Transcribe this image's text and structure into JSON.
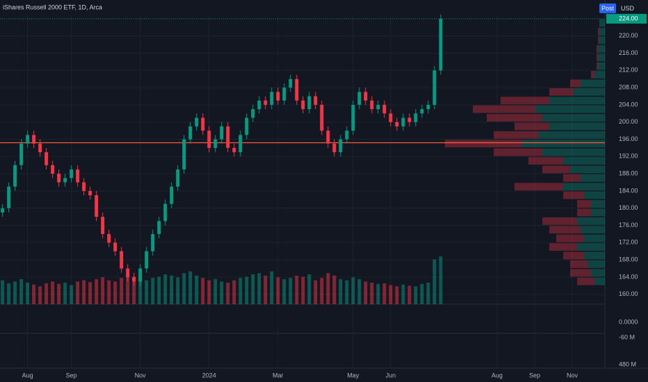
{
  "chart_data": {
    "type": "candlestick",
    "title": "iShares Russell 2000 ETF, 1D, Arca",
    "badge": "Post",
    "currency": "USD",
    "up_color": "#089981",
    "down_color": "#f23645",
    "xlim": [
      -0.4,
      96
    ],
    "xticks": [
      {
        "value": 4,
        "label": "Aug"
      },
      {
        "value": 11,
        "label": "Sep"
      },
      {
        "value": 22,
        "label": "Nov"
      },
      {
        "value": 33,
        "label": "2024"
      },
      {
        "value": 44,
        "label": "Mar"
      },
      {
        "value": 56,
        "label": "May"
      },
      {
        "value": 62,
        "label": "Jun"
      },
      {
        "value": 79,
        "label": "Aug"
      },
      {
        "value": 85,
        "label": "Sep"
      },
      {
        "value": 91,
        "label": "Nov"
      }
    ],
    "ylim": [
      157.7,
      224.8
    ],
    "yticks": [
      {
        "value": 160,
        "label": "160.00"
      },
      {
        "value": 164,
        "label": "164.00"
      },
      {
        "value": 168,
        "label": "168.00"
      },
      {
        "value": 172,
        "label": "172.00"
      },
      {
        "value": 176,
        "label": "176.00"
      },
      {
        "value": 180,
        "label": "180.00"
      },
      {
        "value": 184,
        "label": "184.00"
      },
      {
        "value": 188,
        "label": "188.00"
      },
      {
        "value": 192,
        "label": "192.00"
      },
      {
        "value": 196,
        "label": "196.00"
      },
      {
        "value": 200,
        "label": "200.00"
      },
      {
        "value": 204,
        "label": "204.00"
      },
      {
        "value": 208,
        "label": "208.00"
      },
      {
        "value": 212,
        "label": "212.00"
      },
      {
        "value": 216,
        "label": "216.00"
      },
      {
        "value": 220,
        "label": "220.00"
      }
    ],
    "last_price": {
      "value": 224,
      "label": "224.00"
    },
    "hline": {
      "value": 195.2,
      "color": "#ff5a3c"
    },
    "open": [
      179,
      180,
      185,
      190,
      195,
      197,
      195,
      193,
      190,
      188,
      186,
      187,
      189,
      186,
      184,
      183,
      178,
      174,
      172,
      170,
      166,
      164,
      163,
      166,
      170,
      174,
      177,
      181,
      185,
      189,
      196,
      199,
      201,
      198,
      194,
      196,
      199,
      194,
      193,
      197,
      201,
      203,
      205,
      204,
      207,
      205,
      208,
      210,
      205,
      203,
      206,
      204,
      198,
      195,
      193,
      196,
      198,
      204,
      207,
      205,
      203,
      204,
      202,
      200,
      199,
      201,
      200,
      202,
      203,
      204,
      212
    ],
    "high": [
      181,
      186,
      191,
      196,
      198,
      198,
      196,
      194,
      191,
      189,
      188,
      190,
      190,
      187,
      185,
      184,
      179,
      175,
      173,
      171,
      167,
      165,
      167,
      171,
      175,
      178,
      182,
      186,
      190,
      197,
      200,
      202,
      202,
      199,
      197,
      200,
      200,
      195,
      198,
      202,
      204,
      206,
      206,
      208,
      208,
      209,
      211,
      211,
      206,
      207,
      207,
      205,
      199,
      196,
      197,
      199,
      205,
      208,
      208,
      206,
      205,
      205,
      203,
      201,
      202,
      202,
      203,
      204,
      205,
      213,
      225
    ],
    "low": [
      178,
      179,
      184,
      189,
      194,
      194,
      192,
      189,
      187,
      185,
      185,
      186,
      185,
      183,
      182,
      177,
      173,
      171,
      169,
      165,
      163,
      162,
      162,
      165,
      169,
      173,
      176,
      180,
      184,
      188,
      195,
      198,
      197,
      193,
      193,
      195,
      193,
      192,
      192,
      196,
      200,
      202,
      203,
      203,
      204,
      204,
      207,
      204,
      202,
      202,
      203,
      197,
      194,
      192,
      192,
      195,
      197,
      203,
      204,
      202,
      202,
      201,
      199,
      198,
      198,
      199,
      199,
      201,
      202,
      203,
      211
    ],
    "close": [
      180,
      185,
      190,
      195,
      197,
      195,
      193,
      190,
      188,
      186,
      187,
      189,
      186,
      184,
      183,
      178,
      174,
      172,
      170,
      166,
      164,
      163,
      166,
      170,
      174,
      177,
      181,
      185,
      189,
      196,
      199,
      201,
      198,
      194,
      196,
      199,
      194,
      193,
      197,
      201,
      203,
      205,
      204,
      207,
      205,
      208,
      210,
      205,
      203,
      206,
      204,
      198,
      195,
      193,
      196,
      198,
      204,
      207,
      205,
      203,
      204,
      202,
      200,
      199,
      201,
      200,
      202,
      203,
      204,
      212,
      224
    ],
    "volume": [
      40,
      35,
      38,
      42,
      36,
      33,
      30,
      35,
      38,
      34,
      36,
      32,
      38,
      40,
      37,
      42,
      45,
      40,
      38,
      44,
      48,
      46,
      42,
      40,
      44,
      46,
      50,
      48,
      45,
      52,
      55,
      48,
      44,
      40,
      42,
      38,
      36,
      40,
      44,
      46,
      50,
      52,
      48,
      55,
      45,
      42,
      44,
      48,
      46,
      50,
      40,
      44,
      52,
      48,
      42,
      40,
      45,
      42,
      38,
      36,
      34,
      35,
      32,
      30,
      33,
      31,
      30,
      34,
      36,
      75,
      80
    ],
    "vlim": [
      0,
      100
    ],
    "profile": {
      "prices": [
        163,
        165,
        167,
        169,
        171,
        173,
        175,
        177,
        179,
        181,
        183,
        185,
        187,
        189,
        191,
        193,
        195,
        197,
        199,
        201,
        203,
        205,
        207,
        209,
        211,
        213,
        215,
        217,
        219,
        221,
        223
      ],
      "up": [
        15,
        20,
        25,
        30,
        40,
        30,
        35,
        40,
        20,
        20,
        30,
        60,
        35,
        50,
        60,
        90,
        120,
        95,
        80,
        90,
        100,
        80,
        45,
        35,
        15,
        10,
        10,
        10,
        8,
        8,
        8
      ],
      "down": [
        25,
        30,
        25,
        30,
        40,
        40,
        45,
        50,
        20,
        20,
        30,
        70,
        25,
        40,
        50,
        70,
        110,
        65,
        50,
        80,
        90,
        70,
        35,
        15,
        5,
        2,
        2,
        2,
        2,
        2,
        0
      ],
      "xlim": [
        0,
        250
      ]
    },
    "lower_pane": {
      "labels": [
        "0.0000",
        "-60 M",
        "480 M"
      ]
    }
  }
}
